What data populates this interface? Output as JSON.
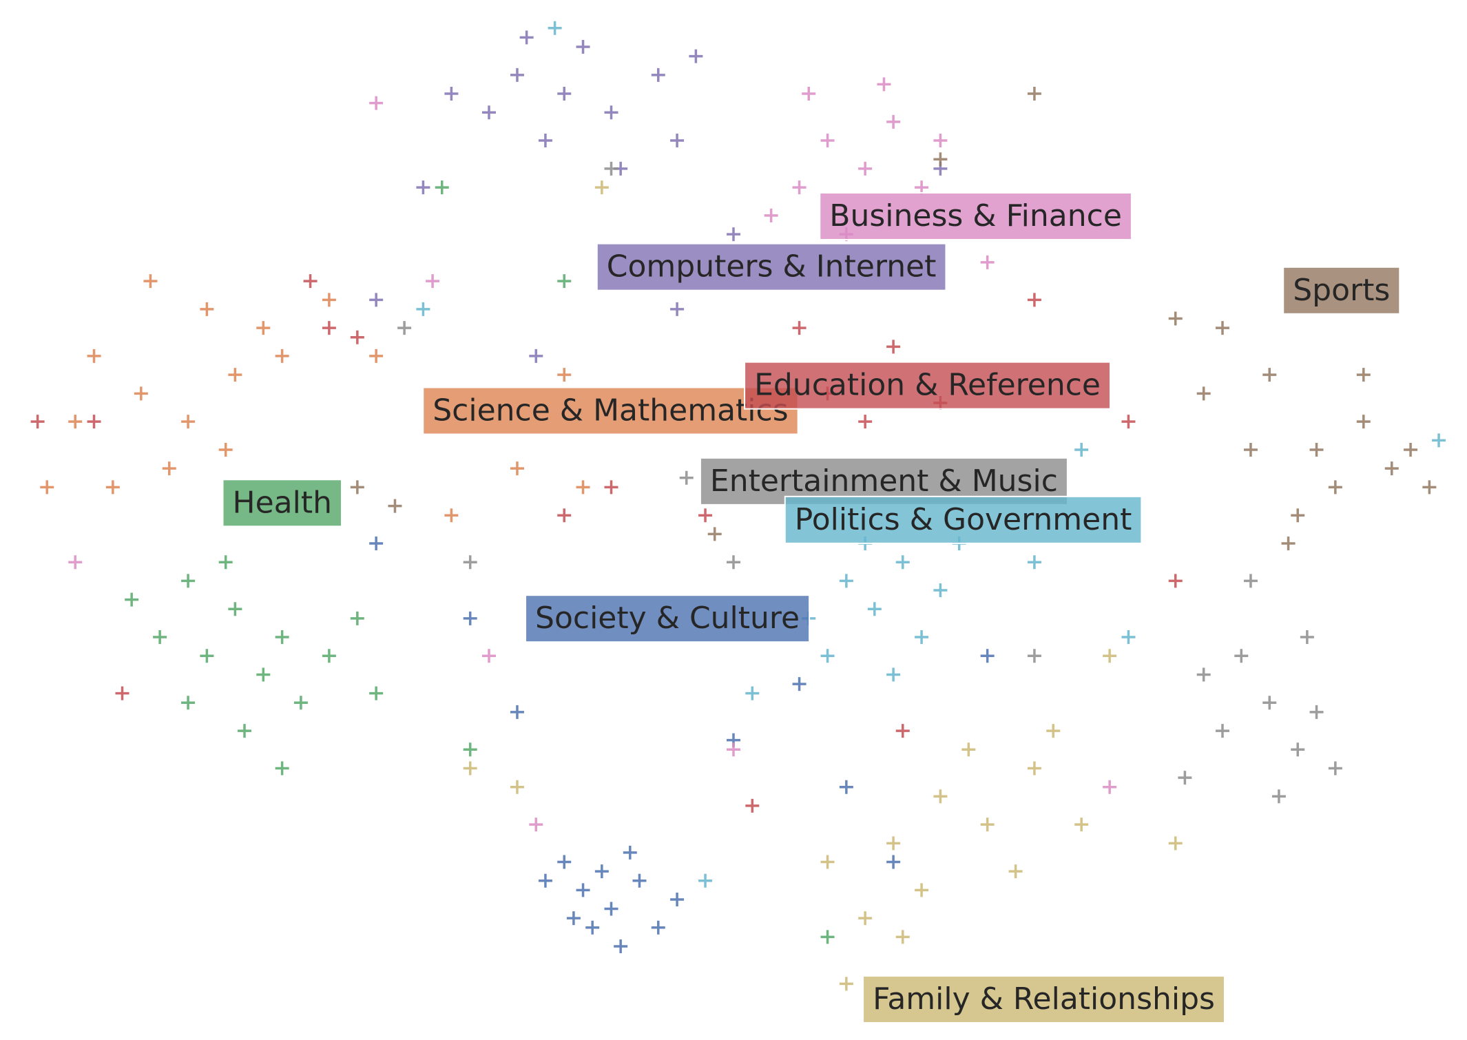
{
  "chart_data": {
    "type": "scatter",
    "marker": "+",
    "xlim": [
      0,
      156
    ],
    "ylim": [
      0,
      111
    ],
    "series": [
      {
        "name": "Society & Culture",
        "color": "#4c72b0",
        "x": [
          60,
          62,
          65,
          68,
          70,
          66,
          63,
          58,
          72,
          64,
          67,
          61,
          50,
          78,
          90,
          85,
          55,
          105,
          95,
          40
        ],
        "y": [
          19,
          16,
          14,
          17,
          12,
          10,
          12,
          17,
          15,
          18,
          20,
          13,
          45,
          32,
          27,
          38,
          35,
          41,
          19,
          53
        ]
      },
      {
        "name": "Science & Mathematics",
        "color": "#dd8452",
        "x": [
          10,
          15,
          20,
          25,
          28,
          18,
          12,
          22,
          30,
          35,
          16,
          8,
          24,
          40,
          5,
          55,
          60,
          48,
          62
        ],
        "y": [
          73,
          69,
          66,
          71,
          76,
          61,
          59,
          78,
          73,
          79,
          81,
          66,
          63,
          73,
          59,
          61,
          71,
          56,
          59
        ]
      },
      {
        "name": "Health",
        "color": "#55a868",
        "x": [
          20,
          25,
          30,
          28,
          22,
          35,
          32,
          26,
          20,
          38,
          24,
          30,
          17,
          40,
          14,
          47,
          60,
          88,
          50
        ],
        "y": [
          49,
          46,
          43,
          39,
          41,
          41,
          36,
          33,
          36,
          45,
          51,
          29,
          43,
          37,
          47,
          91,
          81,
          11,
          31
        ]
      },
      {
        "name": "Education & Reference",
        "color": "#c44e52",
        "x": [
          35,
          33,
          38,
          10,
          4,
          88,
          92,
          95,
          85,
          100,
          110,
          60,
          65,
          75,
          120,
          125,
          96,
          80,
          13
        ],
        "y": [
          76,
          81,
          75,
          66,
          66,
          69,
          66,
          74,
          76,
          68,
          79,
          56,
          59,
          56,
          66,
          49,
          33,
          25,
          37
        ]
      },
      {
        "name": "Computers & Internet",
        "color": "#8172b3",
        "x": [
          60,
          55,
          65,
          58,
          52,
          62,
          70,
          48,
          72,
          56,
          66,
          74,
          45,
          78,
          57,
          72,
          40,
          100
        ],
        "y": [
          101,
          103,
          99,
          96,
          99,
          106,
          103,
          101,
          96,
          107,
          93,
          105,
          91,
          86,
          73,
          78,
          79,
          93
        ]
      },
      {
        "name": "Sports",
        "color": "#937860",
        "x": [
          130,
          135,
          140,
          145,
          142,
          138,
          148,
          128,
          133,
          150,
          145,
          137,
          152,
          125,
          42,
          38,
          110,
          76,
          100
        ],
        "y": [
          76,
          71,
          63,
          66,
          59,
          56,
          61,
          69,
          63,
          63,
          71,
          53,
          59,
          77,
          57,
          59,
          101,
          54,
          94
        ]
      },
      {
        "name": "Business & Finance",
        "color": "#da8bc3",
        "x": [
          88,
          92,
          85,
          95,
          98,
          82,
          90,
          100,
          105,
          86,
          94,
          40,
          46,
          52,
          78,
          118,
          57,
          8
        ],
        "y": [
          96,
          93,
          91,
          98,
          91,
          88,
          86,
          96,
          83,
          101,
          102,
          100,
          81,
          41,
          31,
          27,
          23,
          51
        ]
      },
      {
        "name": "Entertainment & Music",
        "color": "#8c8c8c",
        "x": [
          135,
          138,
          140,
          132,
          136,
          142,
          130,
          128,
          139,
          133,
          126,
          73,
          78,
          50,
          43,
          65,
          110
        ],
        "y": [
          36,
          31,
          35,
          41,
          26,
          29,
          33,
          39,
          43,
          49,
          28,
          60,
          51,
          51,
          76,
          93,
          41
        ]
      },
      {
        "name": "Family & Relationships",
        "color": "#ccb974",
        "x": [
          95,
          100,
          105,
          110,
          98,
          92,
          108,
          112,
          88,
          103,
          115,
          96,
          118,
          55,
          50,
          125,
          90,
          64
        ],
        "y": [
          21,
          26,
          23,
          29,
          16,
          13,
          18,
          33,
          19,
          31,
          23,
          11,
          41,
          27,
          29,
          21,
          6,
          91
        ]
      },
      {
        "name": "Politics & Government",
        "color": "#64b5cd",
        "x": [
          93,
          90,
          96,
          98,
          88,
          95,
          100,
          92,
          86,
          102,
          110,
          120,
          115,
          75,
          45,
          153,
          59,
          80
        ],
        "y": [
          46,
          49,
          51,
          43,
          41,
          39,
          48,
          53,
          45,
          53,
          51,
          43,
          63,
          17,
          78,
          64,
          108,
          37
        ]
      }
    ]
  }
}
